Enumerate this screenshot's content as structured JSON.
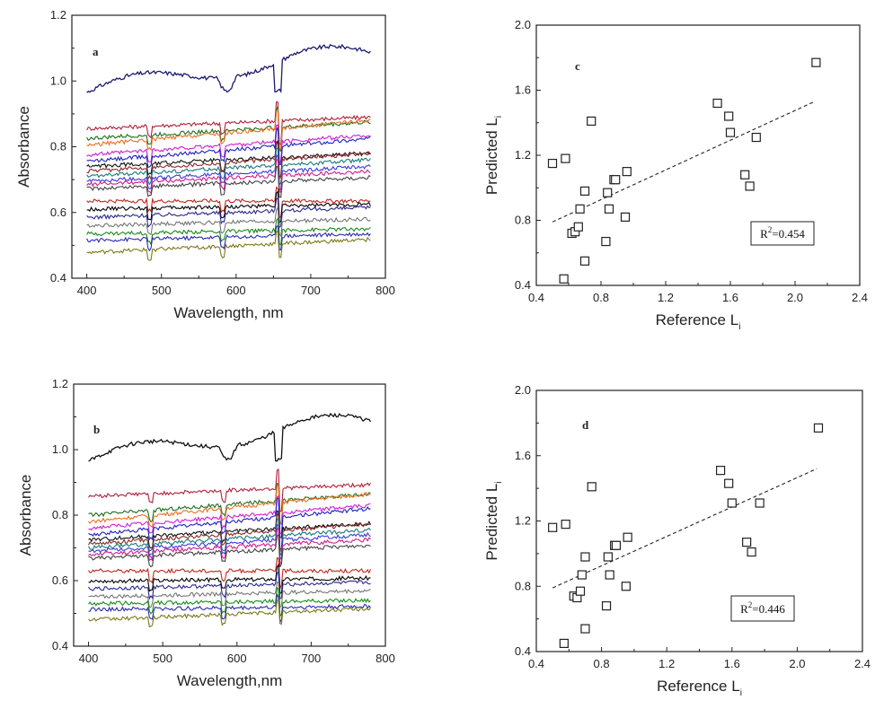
{
  "chart_data": [
    {
      "type": "line",
      "panel_label": "a",
      "xlabel": "Wavelength, nm",
      "ylabel": "Absorbance",
      "xlim": [
        380,
        800
      ],
      "ylim": [
        0.4,
        1.2
      ],
      "xticks": [
        400,
        500,
        600,
        700,
        800
      ],
      "yticks": [
        0.4,
        0.6,
        0.8,
        1.0,
        1.2
      ],
      "x_range": [
        400,
        780
      ],
      "series": [
        {
          "color": "#1a1a6e",
          "base": 0.965,
          "slope": 0.11,
          "style": "top"
        },
        {
          "color": "#b0203c",
          "base": 0.855,
          "slope": 0.035
        },
        {
          "color": "#1c6e1c",
          "base": 0.825,
          "slope": 0.05
        },
        {
          "color": "#e87020",
          "base": 0.805,
          "slope": 0.075
        },
        {
          "color": "#d01fd0",
          "base": 0.775,
          "slope": 0.06
        },
        {
          "color": "#2020c0",
          "base": 0.755,
          "slope": 0.07
        },
        {
          "color": "#111111",
          "base": 0.74,
          "slope": 0.04
        },
        {
          "color": "#8a2a2a",
          "base": 0.725,
          "slope": 0.055
        },
        {
          "color": "#1a7a7a",
          "base": 0.71,
          "slope": 0.05
        },
        {
          "color": "#3a3adc",
          "base": 0.695,
          "slope": 0.045
        },
        {
          "color": "#d01f8c",
          "base": 0.685,
          "slope": 0.04
        },
        {
          "color": "#444444",
          "base": 0.672,
          "slope": 0.035
        },
        {
          "color": "#c0281e",
          "base": 0.635,
          "slope": 0.0
        },
        {
          "color": "#000000",
          "base": 0.61,
          "slope": 0.015
        },
        {
          "color": "#2a2a8c",
          "base": 0.585,
          "slope": 0.03
        },
        {
          "color": "#777777",
          "base": 0.56,
          "slope": 0.02
        },
        {
          "color": "#1a8a1a",
          "base": 0.535,
          "slope": 0.015
        },
        {
          "color": "#2a2ab0",
          "base": 0.515,
          "slope": 0.02
        },
        {
          "color": "#7a7a1a",
          "base": 0.478,
          "slope": 0.04
        }
      ]
    },
    {
      "type": "scatter",
      "panel_label": "c",
      "xlabel": "Reference L",
      "ylabel": "Predicted L",
      "label_subscript": "i",
      "xlim": [
        0.4,
        2.4
      ],
      "ylim": [
        0.4,
        2.0
      ],
      "xticks": [
        0.4,
        0.8,
        1.2,
        1.6,
        2.0,
        2.4
      ],
      "yticks": [
        0.4,
        0.8,
        1.2,
        1.6,
        2.0
      ],
      "annotation": {
        "prefix": "R",
        "sup": "2",
        "value": "=0.454"
      },
      "trendline": {
        "x": [
          0.5,
          2.12
        ],
        "y": [
          0.79,
          1.53
        ]
      },
      "points": [
        [
          0.5,
          1.15
        ],
        [
          0.58,
          1.18
        ],
        [
          0.57,
          0.44
        ],
        [
          0.62,
          0.72
        ],
        [
          0.64,
          0.73
        ],
        [
          0.66,
          0.76
        ],
        [
          0.67,
          0.87
        ],
        [
          0.7,
          0.98
        ],
        [
          0.7,
          0.55
        ],
        [
          0.74,
          1.41
        ],
        [
          0.83,
          0.67
        ],
        [
          0.84,
          0.97
        ],
        [
          0.85,
          0.87
        ],
        [
          0.88,
          1.05
        ],
        [
          0.89,
          1.05
        ],
        [
          0.95,
          0.82
        ],
        [
          0.96,
          1.1
        ],
        [
          1.52,
          1.52
        ],
        [
          1.59,
          1.44
        ],
        [
          1.6,
          1.34
        ],
        [
          1.69,
          1.08
        ],
        [
          1.72,
          1.01
        ],
        [
          1.76,
          1.31
        ],
        [
          2.13,
          1.77
        ]
      ]
    },
    {
      "type": "line",
      "panel_label": "b",
      "xlabel": "Wavelength,nm",
      "ylabel": "Absorbance",
      "xlim": [
        380,
        800
      ],
      "ylim": [
        0.4,
        1.2
      ],
      "xticks": [
        400,
        500,
        600,
        700,
        800
      ],
      "yticks": [
        0.4,
        0.6,
        0.8,
        1.0,
        1.2
      ],
      "x_range": [
        400,
        780
      ],
      "series": [
        {
          "color": "#111111",
          "base": 0.965,
          "slope": 0.11,
          "style": "top"
        },
        {
          "color": "#b0203c",
          "base": 0.858,
          "slope": 0.035
        },
        {
          "color": "#1c6e1c",
          "base": 0.8,
          "slope": 0.065
        },
        {
          "color": "#e87020",
          "base": 0.78,
          "slope": 0.085
        },
        {
          "color": "#d01fd0",
          "base": 0.76,
          "slope": 0.07
        },
        {
          "color": "#2020c0",
          "base": 0.74,
          "slope": 0.08
        },
        {
          "color": "#111111",
          "base": 0.725,
          "slope": 0.05
        },
        {
          "color": "#8a2a2a",
          "base": 0.712,
          "slope": 0.06
        },
        {
          "color": "#1a7a7a",
          "base": 0.7,
          "slope": 0.055
        },
        {
          "color": "#3a3adc",
          "base": 0.69,
          "slope": 0.05
        },
        {
          "color": "#d01f8c",
          "base": 0.68,
          "slope": 0.045
        },
        {
          "color": "#444444",
          "base": 0.668,
          "slope": 0.04
        },
        {
          "color": "#c0281e",
          "base": 0.63,
          "slope": 0.0
        },
        {
          "color": "#000000",
          "base": 0.598,
          "slope": 0.01
        },
        {
          "color": "#2a2a8c",
          "base": 0.575,
          "slope": 0.02
        },
        {
          "color": "#777777",
          "base": 0.55,
          "slope": 0.02
        },
        {
          "color": "#1a8a1a",
          "base": 0.53,
          "slope": 0.01
        },
        {
          "color": "#2a2ab0",
          "base": 0.512,
          "slope": 0.01
        },
        {
          "color": "#7a7a1a",
          "base": 0.48,
          "slope": 0.035
        }
      ]
    },
    {
      "type": "scatter",
      "panel_label": "d",
      "xlabel": "Reference L",
      "ylabel": "Predicted L",
      "label_subscript": "i",
      "xlim": [
        0.4,
        2.4
      ],
      "ylim": [
        0.4,
        2.0
      ],
      "xticks": [
        0.4,
        0.8,
        1.2,
        1.6,
        2.0,
        2.4
      ],
      "yticks": [
        0.4,
        0.8,
        1.2,
        1.6,
        2.0
      ],
      "annotation": {
        "prefix": "R",
        "sup": "2",
        "value": "=0.446"
      },
      "trendline": {
        "x": [
          0.5,
          2.12
        ],
        "y": [
          0.79,
          1.52
        ]
      },
      "points": [
        [
          0.5,
          1.16
        ],
        [
          0.58,
          1.18
        ],
        [
          0.57,
          0.45
        ],
        [
          0.63,
          0.74
        ],
        [
          0.65,
          0.73
        ],
        [
          0.67,
          0.77
        ],
        [
          0.68,
          0.87
        ],
        [
          0.7,
          0.98
        ],
        [
          0.7,
          0.54
        ],
        [
          0.74,
          1.41
        ],
        [
          0.83,
          0.68
        ],
        [
          0.84,
          0.98
        ],
        [
          0.85,
          0.87
        ],
        [
          0.88,
          1.05
        ],
        [
          0.89,
          1.05
        ],
        [
          0.95,
          0.8
        ],
        [
          0.96,
          1.1
        ],
        [
          1.53,
          1.51
        ],
        [
          1.58,
          1.43
        ],
        [
          1.6,
          1.31
        ],
        [
          1.69,
          1.07
        ],
        [
          1.72,
          1.01
        ],
        [
          1.77,
          1.31
        ],
        [
          2.13,
          1.77
        ]
      ]
    }
  ]
}
